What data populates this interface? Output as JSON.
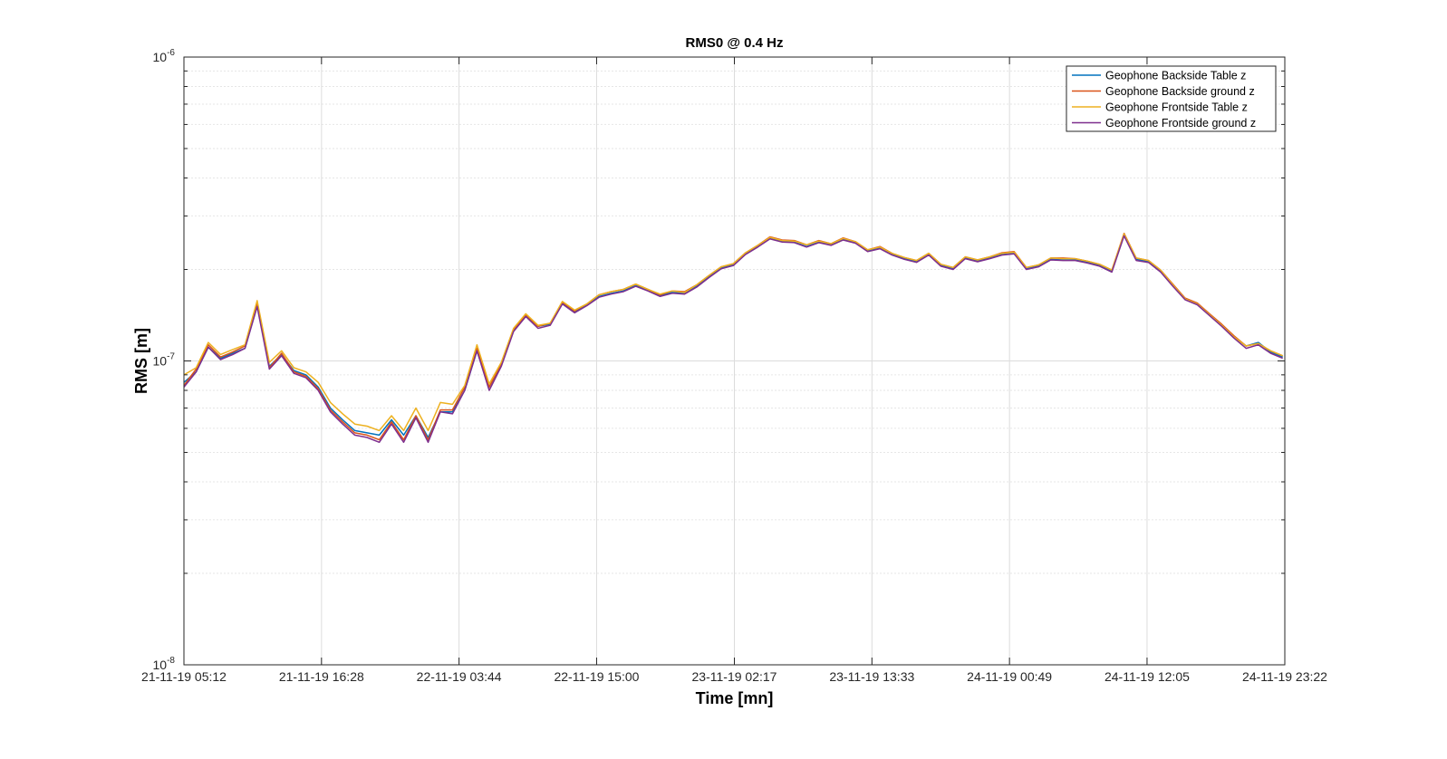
{
  "chart_data": {
    "type": "line",
    "title": "RMS0 @ 0.4 Hz",
    "xlabel": "Time [mn]",
    "ylabel": "RMS [m]",
    "yscale": "log",
    "ylim": [
      1e-08,
      1e-06
    ],
    "grid": true,
    "legend_position": "top-right",
    "y_ticks": [
      {
        "value": 1e-08,
        "base": "10",
        "exp": "-8"
      },
      {
        "value": 1e-07,
        "base": "10",
        "exp": "-7"
      },
      {
        "value": 1e-06,
        "base": "10",
        "exp": "-6"
      }
    ],
    "x_ticks": [
      "21-11-19 05:12",
      "21-11-19 16:28",
      "22-11-19 03:44",
      "22-11-19 15:00",
      "23-11-19 02:17",
      "23-11-19 13:33",
      "24-11-19 00:49",
      "24-11-19 12:05",
      "24-11-19 23:22"
    ],
    "x_tick_hours": [
      0,
      11.267,
      22.533,
      33.8,
      45.083,
      56.35,
      67.617,
      78.883,
      90.167
    ],
    "x_range_hours": [
      0,
      90.167
    ],
    "x": [
      0,
      1,
      2,
      3,
      4,
      5,
      6,
      7,
      8,
      9,
      10,
      11,
      12,
      13,
      14,
      15,
      16,
      17,
      18,
      19,
      20,
      21,
      22,
      23,
      24,
      25,
      26,
      27,
      28,
      29,
      30,
      31,
      32,
      33,
      34,
      35,
      36,
      37,
      38,
      39,
      40,
      41,
      42,
      43,
      44,
      45,
      46,
      47,
      48,
      49,
      50,
      51,
      52,
      53,
      54,
      55,
      56,
      57,
      58,
      59,
      60,
      61,
      62,
      63,
      64,
      65,
      66,
      67,
      68,
      69,
      70,
      71,
      72,
      73,
      74,
      75,
      76,
      77,
      78,
      79,
      80,
      81,
      82,
      83,
      84,
      85,
      86,
      87,
      88,
      89,
      90
    ],
    "series": [
      {
        "name": "Geophone Backside Table z",
        "color": "#0072BD",
        "values": [
          8.5e-08,
          9.2e-08,
          1.11e-07,
          1.02e-07,
          1.06e-07,
          1.1e-07,
          1.52e-07,
          9.6e-08,
          1.05e-07,
          9.3e-08,
          9e-08,
          8.2e-08,
          7e-08,
          6.4e-08,
          5.9e-08,
          5.8e-08,
          5.7e-08,
          6.4e-08,
          5.7e-08,
          6.6e-08,
          5.6e-08,
          6.8e-08,
          6.8e-08,
          8e-08,
          1.08e-07,
          8.2e-08,
          9.7e-08,
          1.26e-07,
          1.41e-07,
          1.3e-07,
          1.32e-07,
          1.55e-07,
          1.45e-07,
          1.53e-07,
          1.63e-07,
          1.67e-07,
          1.7e-07,
          1.77e-07,
          1.71e-07,
          1.64e-07,
          1.68e-07,
          1.67e-07,
          1.76e-07,
          1.89e-07,
          2.02e-07,
          2.07e-07,
          2.25e-07,
          2.38e-07,
          2.53e-07,
          2.47e-07,
          2.46e-07,
          2.38e-07,
          2.46e-07,
          2.41e-07,
          2.51e-07,
          2.45e-07,
          2.3e-07,
          2.35e-07,
          2.24e-07,
          2.17e-07,
          2.12e-07,
          2.24e-07,
          2.06e-07,
          2.01e-07,
          2.18e-07,
          2.13e-07,
          2.18e-07,
          2.24e-07,
          2.26e-07,
          2.01e-07,
          2.05e-07,
          2.16e-07,
          2.15e-07,
          2.15e-07,
          2.11e-07,
          2.06e-07,
          1.97e-07,
          2.6e-07,
          2.16e-07,
          2.12e-07,
          1.97e-07,
          1.77e-07,
          1.6e-07,
          1.54e-07,
          1.42e-07,
          1.31e-07,
          1.2e-07,
          1.12e-07,
          1.15e-07,
          1.07e-07,
          1.03e-07
        ]
      },
      {
        "name": "Geophone Backside ground z",
        "color": "#D95319",
        "values": [
          8.3e-08,
          9.4e-08,
          1.13e-07,
          1.03e-07,
          1.07e-07,
          1.12e-07,
          1.54e-07,
          9.5e-08,
          1.06e-07,
          9.2e-08,
          8.9e-08,
          8.1e-08,
          6.9e-08,
          6.3e-08,
          5.8e-08,
          5.7e-08,
          5.5e-08,
          6.3e-08,
          5.5e-08,
          6.6e-08,
          5.5e-08,
          6.9e-08,
          6.9e-08,
          8.2e-08,
          1.1e-07,
          8.2e-08,
          9.8e-08,
          1.27e-07,
          1.42e-07,
          1.3e-07,
          1.33e-07,
          1.56e-07,
          1.46e-07,
          1.54e-07,
          1.65e-07,
          1.69e-07,
          1.72e-07,
          1.79e-07,
          1.72e-07,
          1.65e-07,
          1.7e-07,
          1.69e-07,
          1.78e-07,
          1.91e-07,
          2.04e-07,
          2.09e-07,
          2.27e-07,
          2.4e-07,
          2.56e-07,
          2.5e-07,
          2.49e-07,
          2.41e-07,
          2.49e-07,
          2.43e-07,
          2.54e-07,
          2.47e-07,
          2.32e-07,
          2.38e-07,
          2.26e-07,
          2.19e-07,
          2.14e-07,
          2.26e-07,
          2.08e-07,
          2.03e-07,
          2.2e-07,
          2.15e-07,
          2.2e-07,
          2.27e-07,
          2.29e-07,
          2.03e-07,
          2.07e-07,
          2.18e-07,
          2.18e-07,
          2.17e-07,
          2.13e-07,
          2.08e-07,
          1.99e-07,
          2.63e-07,
          2.18e-07,
          2.14e-07,
          1.99e-07,
          1.79e-07,
          1.61e-07,
          1.55e-07,
          1.43e-07,
          1.32e-07,
          1.21e-07,
          1.12e-07,
          1.14e-07,
          1.08e-07,
          1.04e-07
        ]
      },
      {
        "name": "Geophone Frontside Table z",
        "color": "#EDB120",
        "values": [
          9e-08,
          9.5e-08,
          1.15e-07,
          1.05e-07,
          1.09e-07,
          1.13e-07,
          1.58e-07,
          9.9e-08,
          1.08e-07,
          9.5e-08,
          9.2e-08,
          8.5e-08,
          7.3e-08,
          6.7e-08,
          6.2e-08,
          6.1e-08,
          5.9e-08,
          6.6e-08,
          5.9e-08,
          7e-08,
          5.9e-08,
          7.3e-08,
          7.2e-08,
          8.3e-08,
          1.13e-07,
          8.4e-08,
          9.9e-08,
          1.28e-07,
          1.43e-07,
          1.31e-07,
          1.33e-07,
          1.57e-07,
          1.47e-07,
          1.54e-07,
          1.65e-07,
          1.69e-07,
          1.72e-07,
          1.79e-07,
          1.72e-07,
          1.66e-07,
          1.7e-07,
          1.68e-07,
          1.78e-07,
          1.91e-07,
          2.04e-07,
          2.09e-07,
          2.27e-07,
          2.4e-07,
          2.55e-07,
          2.49e-07,
          2.48e-07,
          2.41e-07,
          2.48e-07,
          2.43e-07,
          2.53e-07,
          2.47e-07,
          2.32e-07,
          2.37e-07,
          2.26e-07,
          2.19e-07,
          2.14e-07,
          2.26e-07,
          2.08e-07,
          2.03e-07,
          2.2e-07,
          2.15e-07,
          2.2e-07,
          2.26e-07,
          2.28e-07,
          2.03e-07,
          2.07e-07,
          2.18e-07,
          2.17e-07,
          2.17e-07,
          2.13e-07,
          2.08e-07,
          1.99e-07,
          2.62e-07,
          2.18e-07,
          2.14e-07,
          1.99e-07,
          1.78e-07,
          1.6e-07,
          1.54e-07,
          1.42e-07,
          1.31e-07,
          1.2e-07,
          1.12e-07,
          1.14e-07,
          1.08e-07,
          1.04e-07
        ]
      },
      {
        "name": "Geophone Frontside ground z",
        "color": "#7E2F8E",
        "values": [
          8.2e-08,
          9.2e-08,
          1.11e-07,
          1.01e-07,
          1.05e-07,
          1.1e-07,
          1.51e-07,
          9.4e-08,
          1.04e-07,
          9.1e-08,
          8.8e-08,
          8e-08,
          6.8e-08,
          6.2e-08,
          5.7e-08,
          5.6e-08,
          5.4e-08,
          6.2e-08,
          5.4e-08,
          6.5e-08,
          5.4e-08,
          6.8e-08,
          6.7e-08,
          8e-08,
          1.08e-07,
          8e-08,
          9.6e-08,
          1.25e-07,
          1.4e-07,
          1.28e-07,
          1.31e-07,
          1.54e-07,
          1.44e-07,
          1.52e-07,
          1.62e-07,
          1.66e-07,
          1.69e-07,
          1.76e-07,
          1.7e-07,
          1.63e-07,
          1.67e-07,
          1.66e-07,
          1.75e-07,
          1.88e-07,
          2.01e-07,
          2.06e-07,
          2.24e-07,
          2.37e-07,
          2.52e-07,
          2.46e-07,
          2.45e-07,
          2.37e-07,
          2.45e-07,
          2.4e-07,
          2.5e-07,
          2.44e-07,
          2.29e-07,
          2.34e-07,
          2.23e-07,
          2.16e-07,
          2.11e-07,
          2.23e-07,
          2.05e-07,
          2e-07,
          2.17e-07,
          2.12e-07,
          2.17e-07,
          2.23e-07,
          2.25e-07,
          2e-07,
          2.04e-07,
          2.15e-07,
          2.14e-07,
          2.14e-07,
          2.1e-07,
          2.05e-07,
          1.96e-07,
          2.58e-07,
          2.14e-07,
          2.11e-07,
          1.96e-07,
          1.76e-07,
          1.59e-07,
          1.53e-07,
          1.41e-07,
          1.3e-07,
          1.19e-07,
          1.1e-07,
          1.13e-07,
          1.06e-07,
          1.02e-07
        ]
      }
    ]
  }
}
